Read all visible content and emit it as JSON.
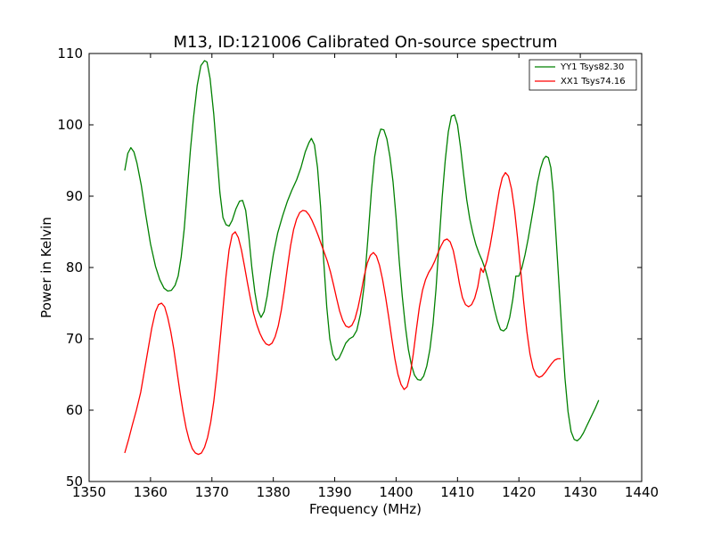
{
  "chart_data": {
    "type": "line",
    "title": "M13, ID:121006 Calibrated On-source spectrum",
    "xlabel": "Frequency (MHz)",
    "ylabel": "Power in Kelvin",
    "xlim": [
      1350,
      1440
    ],
    "ylim": [
      50,
      110
    ],
    "xticks": [
      "1350",
      "1360",
      "1370",
      "1380",
      "1390",
      "1400",
      "1410",
      "1420",
      "1430",
      "1440"
    ],
    "yticks": [
      "50",
      "60",
      "70",
      "80",
      "90",
      "100",
      "110"
    ],
    "grid": false,
    "legend_position": "top-right",
    "series": [
      {
        "name": "YY1 Tsys82.30",
        "color": "#008000",
        "points": [
          [
            1355.8,
            93.6
          ],
          [
            1356.3,
            96.0
          ],
          [
            1356.8,
            96.8
          ],
          [
            1357.3,
            96.2
          ],
          [
            1357.8,
            94.6
          ],
          [
            1358.5,
            91.5
          ],
          [
            1359.2,
            87.5
          ],
          [
            1360.0,
            83.3
          ],
          [
            1360.8,
            80.2
          ],
          [
            1361.5,
            78.3
          ],
          [
            1362.2,
            77.1
          ],
          [
            1362.8,
            76.7
          ],
          [
            1363.4,
            76.8
          ],
          [
            1364.0,
            77.5
          ],
          [
            1364.5,
            78.8
          ],
          [
            1365.0,
            81.5
          ],
          [
            1365.5,
            85.5
          ],
          [
            1366.0,
            91.0
          ],
          [
            1366.5,
            96.5
          ],
          [
            1367.0,
            101.0
          ],
          [
            1367.6,
            105.5
          ],
          [
            1368.2,
            108.3
          ],
          [
            1368.8,
            109.0
          ],
          [
            1369.2,
            108.8
          ],
          [
            1369.7,
            106.5
          ],
          [
            1370.3,
            101.5
          ],
          [
            1370.8,
            96.0
          ],
          [
            1371.3,
            90.5
          ],
          [
            1371.8,
            87.0
          ],
          [
            1372.3,
            86.0
          ],
          [
            1372.8,
            85.8
          ],
          [
            1373.3,
            86.6
          ],
          [
            1373.9,
            88.2
          ],
          [
            1374.5,
            89.3
          ],
          [
            1375.0,
            89.4
          ],
          [
            1375.5,
            88.0
          ],
          [
            1376.0,
            84.5
          ],
          [
            1376.5,
            80.0
          ],
          [
            1377.0,
            76.5
          ],
          [
            1377.5,
            74.0
          ],
          [
            1378.0,
            73.0
          ],
          [
            1378.5,
            73.8
          ],
          [
            1379.0,
            76.0
          ],
          [
            1379.5,
            79.0
          ],
          [
            1380.0,
            81.8
          ],
          [
            1380.7,
            84.8
          ],
          [
            1381.5,
            87.2
          ],
          [
            1382.3,
            89.3
          ],
          [
            1383.0,
            90.8
          ],
          [
            1383.8,
            92.3
          ],
          [
            1384.5,
            94.0
          ],
          [
            1385.2,
            96.2
          ],
          [
            1385.8,
            97.5
          ],
          [
            1386.2,
            98.1
          ],
          [
            1386.7,
            97.2
          ],
          [
            1387.2,
            94.0
          ],
          [
            1387.7,
            88.5
          ],
          [
            1388.2,
            81.0
          ],
          [
            1388.7,
            74.5
          ],
          [
            1389.2,
            70.0
          ],
          [
            1389.7,
            67.8
          ],
          [
            1390.2,
            67.0
          ],
          [
            1390.7,
            67.3
          ],
          [
            1391.2,
            68.2
          ],
          [
            1391.8,
            69.4
          ],
          [
            1392.4,
            70.0
          ],
          [
            1393.0,
            70.3
          ],
          [
            1393.6,
            71.2
          ],
          [
            1394.2,
            73.5
          ],
          [
            1394.8,
            77.5
          ],
          [
            1395.4,
            84.0
          ],
          [
            1396.0,
            91.0
          ],
          [
            1396.5,
            95.5
          ],
          [
            1397.0,
            98.0
          ],
          [
            1397.5,
            99.4
          ],
          [
            1398.0,
            99.3
          ],
          [
            1398.5,
            98.0
          ],
          [
            1399.0,
            95.5
          ],
          [
            1399.5,
            92.0
          ],
          [
            1400.0,
            87.0
          ],
          [
            1400.5,
            81.0
          ],
          [
            1401.0,
            76.0
          ],
          [
            1401.5,
            71.8
          ],
          [
            1402.0,
            68.5
          ],
          [
            1402.5,
            66.3
          ],
          [
            1403.0,
            64.9
          ],
          [
            1403.5,
            64.3
          ],
          [
            1404.0,
            64.2
          ],
          [
            1404.5,
            64.8
          ],
          [
            1405.0,
            66.2
          ],
          [
            1405.5,
            68.5
          ],
          [
            1406.0,
            72.0
          ],
          [
            1406.5,
            77.0
          ],
          [
            1407.0,
            83.5
          ],
          [
            1407.5,
            89.8
          ],
          [
            1408.0,
            95.0
          ],
          [
            1408.5,
            99.0
          ],
          [
            1409.0,
            101.2
          ],
          [
            1409.5,
            101.4
          ],
          [
            1410.0,
            100.0
          ],
          [
            1410.5,
            96.8
          ],
          [
            1411.0,
            93.0
          ],
          [
            1411.5,
            89.5
          ],
          [
            1412.0,
            86.8
          ],
          [
            1412.5,
            84.8
          ],
          [
            1413.0,
            83.2
          ],
          [
            1413.5,
            82.0
          ],
          [
            1414.0,
            81.0
          ],
          [
            1414.5,
            79.8
          ],
          [
            1415.0,
            78.2
          ],
          [
            1415.5,
            76.2
          ],
          [
            1416.0,
            74.2
          ],
          [
            1416.5,
            72.5
          ],
          [
            1417.0,
            71.3
          ],
          [
            1417.5,
            71.1
          ],
          [
            1418.0,
            71.5
          ],
          [
            1418.5,
            73.0
          ],
          [
            1419.0,
            75.5
          ],
          [
            1419.5,
            78.8
          ],
          [
            1420.0,
            78.8
          ],
          [
            1420.5,
            80.0
          ],
          [
            1421.0,
            81.8
          ],
          [
            1421.5,
            84.0
          ],
          [
            1422.0,
            86.5
          ],
          [
            1422.5,
            89.0
          ],
          [
            1423.0,
            91.8
          ],
          [
            1423.5,
            93.8
          ],
          [
            1424.0,
            95.2
          ],
          [
            1424.4,
            95.6
          ],
          [
            1424.8,
            95.4
          ],
          [
            1425.2,
            94.0
          ],
          [
            1425.6,
            90.5
          ],
          [
            1426.0,
            85.0
          ],
          [
            1426.5,
            78.0
          ],
          [
            1427.0,
            71.0
          ],
          [
            1427.5,
            64.5
          ],
          [
            1428.0,
            59.8
          ],
          [
            1428.5,
            57.0
          ],
          [
            1429.0,
            55.9
          ],
          [
            1429.5,
            55.7
          ],
          [
            1430.0,
            56.1
          ],
          [
            1430.5,
            56.8
          ],
          [
            1431.0,
            57.7
          ],
          [
            1431.5,
            58.6
          ],
          [
            1432.0,
            59.5
          ],
          [
            1432.5,
            60.4
          ],
          [
            1433.0,
            61.4
          ]
        ]
      },
      {
        "name": "XX1 Tsys74.16",
        "color": "#ff0000",
        "points": [
          [
            1355.8,
            54.0
          ],
          [
            1356.4,
            55.8
          ],
          [
            1357.0,
            57.8
          ],
          [
            1357.7,
            60.0
          ],
          [
            1358.4,
            62.5
          ],
          [
            1359.0,
            65.5
          ],
          [
            1359.6,
            68.5
          ],
          [
            1360.2,
            71.5
          ],
          [
            1360.8,
            73.8
          ],
          [
            1361.3,
            74.8
          ],
          [
            1361.8,
            75.0
          ],
          [
            1362.3,
            74.5
          ],
          [
            1362.8,
            73.0
          ],
          [
            1363.3,
            71.0
          ],
          [
            1363.8,
            68.5
          ],
          [
            1364.3,
            65.5
          ],
          [
            1364.8,
            62.5
          ],
          [
            1365.3,
            59.8
          ],
          [
            1365.8,
            57.5
          ],
          [
            1366.3,
            55.8
          ],
          [
            1366.8,
            54.6
          ],
          [
            1367.3,
            54.0
          ],
          [
            1367.8,
            53.8
          ],
          [
            1368.3,
            54.0
          ],
          [
            1368.8,
            54.8
          ],
          [
            1369.3,
            56.2
          ],
          [
            1369.8,
            58.3
          ],
          [
            1370.3,
            61.2
          ],
          [
            1370.8,
            65.0
          ],
          [
            1371.3,
            69.5
          ],
          [
            1371.8,
            74.2
          ],
          [
            1372.3,
            78.8
          ],
          [
            1372.8,
            82.5
          ],
          [
            1373.3,
            84.6
          ],
          [
            1373.8,
            85.0
          ],
          [
            1374.3,
            84.2
          ],
          [
            1374.8,
            82.5
          ],
          [
            1375.3,
            80.2
          ],
          [
            1375.8,
            77.8
          ],
          [
            1376.3,
            75.5
          ],
          [
            1376.8,
            73.5
          ],
          [
            1377.3,
            72.0
          ],
          [
            1377.8,
            70.8
          ],
          [
            1378.3,
            69.9
          ],
          [
            1378.8,
            69.3
          ],
          [
            1379.3,
            69.1
          ],
          [
            1379.8,
            69.4
          ],
          [
            1380.3,
            70.3
          ],
          [
            1380.8,
            71.8
          ],
          [
            1381.3,
            74.0
          ],
          [
            1381.8,
            76.8
          ],
          [
            1382.3,
            80.0
          ],
          [
            1382.8,
            83.0
          ],
          [
            1383.3,
            85.3
          ],
          [
            1383.8,
            86.8
          ],
          [
            1384.3,
            87.7
          ],
          [
            1384.8,
            88.0
          ],
          [
            1385.3,
            87.9
          ],
          [
            1385.8,
            87.4
          ],
          [
            1386.3,
            86.6
          ],
          [
            1386.8,
            85.6
          ],
          [
            1387.3,
            84.5
          ],
          [
            1387.8,
            83.3
          ],
          [
            1388.3,
            82.1
          ],
          [
            1388.8,
            80.9
          ],
          [
            1389.3,
            79.4
          ],
          [
            1389.8,
            77.6
          ],
          [
            1390.3,
            75.7
          ],
          [
            1390.8,
            73.9
          ],
          [
            1391.3,
            72.6
          ],
          [
            1391.8,
            71.8
          ],
          [
            1392.3,
            71.6
          ],
          [
            1392.8,
            71.9
          ],
          [
            1393.3,
            72.8
          ],
          [
            1393.8,
            74.4
          ],
          [
            1394.3,
            76.5
          ],
          [
            1394.8,
            78.8
          ],
          [
            1395.3,
            80.6
          ],
          [
            1395.8,
            81.7
          ],
          [
            1396.3,
            82.1
          ],
          [
            1396.8,
            81.6
          ],
          [
            1397.3,
            80.3
          ],
          [
            1397.8,
            78.3
          ],
          [
            1398.3,
            75.8
          ],
          [
            1398.8,
            73.0
          ],
          [
            1399.3,
            70.0
          ],
          [
            1399.8,
            67.2
          ],
          [
            1400.3,
            65.0
          ],
          [
            1400.8,
            63.6
          ],
          [
            1401.3,
            62.9
          ],
          [
            1401.8,
            63.3
          ],
          [
            1402.3,
            65.0
          ],
          [
            1402.8,
            67.9
          ],
          [
            1403.3,
            71.3
          ],
          [
            1403.8,
            74.5
          ],
          [
            1404.3,
            76.8
          ],
          [
            1404.8,
            78.3
          ],
          [
            1405.3,
            79.3
          ],
          [
            1405.8,
            80.0
          ],
          [
            1406.3,
            80.9
          ],
          [
            1406.8,
            82.0
          ],
          [
            1407.3,
            83.0
          ],
          [
            1407.8,
            83.8
          ],
          [
            1408.3,
            84.0
          ],
          [
            1408.8,
            83.6
          ],
          [
            1409.3,
            82.4
          ],
          [
            1409.8,
            80.3
          ],
          [
            1410.3,
            77.8
          ],
          [
            1410.8,
            75.8
          ],
          [
            1411.3,
            74.8
          ],
          [
            1411.8,
            74.5
          ],
          [
            1412.3,
            74.8
          ],
          [
            1412.8,
            75.7
          ],
          [
            1413.3,
            77.3
          ],
          [
            1413.8,
            79.9
          ],
          [
            1414.2,
            79.3
          ],
          [
            1414.8,
            81.0
          ],
          [
            1415.3,
            83.0
          ],
          [
            1415.8,
            85.5
          ],
          [
            1416.3,
            88.2
          ],
          [
            1416.8,
            90.8
          ],
          [
            1417.3,
            92.6
          ],
          [
            1417.8,
            93.3
          ],
          [
            1418.3,
            92.8
          ],
          [
            1418.8,
            91.0
          ],
          [
            1419.3,
            88.0
          ],
          [
            1419.8,
            84.0
          ],
          [
            1420.3,
            79.5
          ],
          [
            1420.8,
            75.0
          ],
          [
            1421.3,
            71.0
          ],
          [
            1421.8,
            67.9
          ],
          [
            1422.3,
            65.9
          ],
          [
            1422.8,
            64.9
          ],
          [
            1423.3,
            64.6
          ],
          [
            1423.8,
            64.8
          ],
          [
            1424.3,
            65.3
          ],
          [
            1424.8,
            65.9
          ],
          [
            1425.3,
            66.5
          ],
          [
            1425.8,
            67.0
          ],
          [
            1426.3,
            67.2
          ],
          [
            1426.8,
            67.2
          ]
        ]
      }
    ]
  }
}
